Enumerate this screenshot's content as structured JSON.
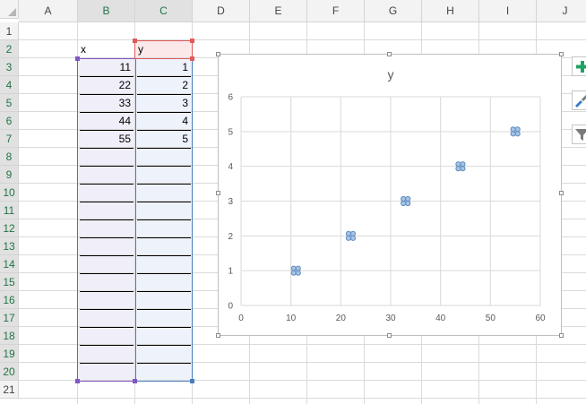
{
  "columns": [
    "A",
    "B",
    "C",
    "D",
    "E",
    "F",
    "G",
    "H",
    "I",
    "J"
  ],
  "rows": [
    "1",
    "2",
    "3",
    "4",
    "5",
    "6",
    "7",
    "8",
    "9",
    "10",
    "11",
    "12",
    "13",
    "14",
    "15",
    "16",
    "17",
    "18",
    "19",
    "20",
    "21"
  ],
  "headers": {
    "x": "x",
    "y": "y"
  },
  "table": [
    {
      "x": "11",
      "y": "1"
    },
    {
      "x": "22",
      "y": "2"
    },
    {
      "x": "33",
      "y": "3"
    },
    {
      "x": "44",
      "y": "4"
    },
    {
      "x": "55",
      "y": "5"
    }
  ],
  "colors": {
    "marker": "#5b8bc0",
    "gridline": "#d9d9d9",
    "range_x": "#7e57c2",
    "range_y": "#4a7ebb",
    "range_header": "#e05b5b",
    "side_plus": "#21a366"
  },
  "chart_data": {
    "type": "scatter",
    "title": "y",
    "xlabel": "",
    "ylabel": "",
    "xlim": [
      0,
      60
    ],
    "ylim": [
      0,
      6
    ],
    "x_ticks": [
      "0",
      "10",
      "20",
      "30",
      "40",
      "50",
      "60"
    ],
    "y_ticks": [
      "0",
      "1",
      "2",
      "3",
      "4",
      "5",
      "6"
    ],
    "grid": true,
    "legend": "none",
    "series": [
      {
        "x": [
          11,
          22,
          33,
          44,
          55
        ],
        "y": [
          1,
          2,
          3,
          4,
          5
        ]
      }
    ]
  },
  "side_buttons": [
    "chart-elements-plus-icon",
    "chart-styles-brush-icon",
    "chart-filters-funnel-icon"
  ]
}
